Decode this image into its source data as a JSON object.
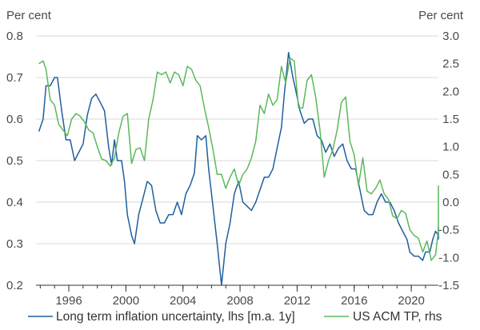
{
  "chart_data": {
    "type": "line",
    "left_axis": {
      "unit": "Per cent",
      "ylim": [
        0.2,
        0.8
      ],
      "ticks": [
        0.2,
        0.3,
        0.4,
        0.5,
        0.6,
        0.7,
        0.8
      ],
      "tick_labels": [
        "0.2",
        "0.3",
        "0.4",
        "0.5",
        "0.6",
        "0.7",
        "0.8"
      ]
    },
    "right_axis": {
      "unit": "Per cent",
      "ylim": [
        -1.5,
        3.0
      ],
      "ticks": [
        -1.5,
        -1.0,
        -0.5,
        0.0,
        0.5,
        1.0,
        1.5,
        2.0,
        2.5,
        3.0
      ],
      "tick_labels": [
        "-1.5",
        "-1.0",
        "-0.5",
        "0.0",
        "0.5",
        "1.0",
        "1.5",
        "2.0",
        "2.5",
        "3.0"
      ]
    },
    "x_axis": {
      "xlim": [
        1993.7,
        2021.9
      ],
      "ticks": [
        1996,
        2000,
        2004,
        2008,
        2012,
        2016,
        2020
      ],
      "tick_labels": [
        "1996",
        "2000",
        "2004",
        "2008",
        "2012",
        "2016",
        "2020"
      ]
    },
    "grid": "horizontal",
    "legend_position": "bottom",
    "series": [
      {
        "name": "Long term inflation uncertainty, lhs [m.a. 1y]",
        "axis": "left",
        "color": "#1f5f9e",
        "points": [
          [
            1993.9,
            0.57
          ],
          [
            1994.2,
            0.6
          ],
          [
            1994.4,
            0.68
          ],
          [
            1994.7,
            0.68
          ],
          [
            1995.0,
            0.7
          ],
          [
            1995.2,
            0.7
          ],
          [
            1995.5,
            0.62
          ],
          [
            1995.8,
            0.55
          ],
          [
            1996.1,
            0.55
          ],
          [
            1996.4,
            0.5
          ],
          [
            1996.7,
            0.52
          ],
          [
            1997.0,
            0.54
          ],
          [
            1997.3,
            0.61
          ],
          [
            1997.6,
            0.65
          ],
          [
            1997.9,
            0.66
          ],
          [
            1998.2,
            0.64
          ],
          [
            1998.5,
            0.62
          ],
          [
            1998.8,
            0.53
          ],
          [
            1999.0,
            0.49
          ],
          [
            1999.2,
            0.55
          ],
          [
            1999.4,
            0.5
          ],
          [
            1999.7,
            0.5
          ],
          [
            1999.9,
            0.45
          ],
          [
            2000.1,
            0.37
          ],
          [
            2000.4,
            0.32
          ],
          [
            2000.6,
            0.3
          ],
          [
            2000.9,
            0.37
          ],
          [
            2001.2,
            0.41
          ],
          [
            2001.5,
            0.45
          ],
          [
            2001.8,
            0.44
          ],
          [
            2002.1,
            0.38
          ],
          [
            2002.4,
            0.35
          ],
          [
            2002.7,
            0.35
          ],
          [
            2003.0,
            0.37
          ],
          [
            2003.3,
            0.37
          ],
          [
            2003.6,
            0.4
          ],
          [
            2003.9,
            0.37
          ],
          [
            2004.2,
            0.42
          ],
          [
            2004.5,
            0.44
          ],
          [
            2004.8,
            0.47
          ],
          [
            2005.0,
            0.56
          ],
          [
            2005.3,
            0.55
          ],
          [
            2005.6,
            0.56
          ],
          [
            2005.8,
            0.48
          ],
          [
            2006.1,
            0.39
          ],
          [
            2006.4,
            0.3
          ],
          [
            2006.7,
            0.2
          ],
          [
            2007.0,
            0.3
          ],
          [
            2007.3,
            0.35
          ],
          [
            2007.6,
            0.42
          ],
          [
            2007.9,
            0.45
          ],
          [
            2008.2,
            0.4
          ],
          [
            2008.5,
            0.39
          ],
          [
            2008.8,
            0.38
          ],
          [
            2009.1,
            0.4
          ],
          [
            2009.4,
            0.43
          ],
          [
            2009.7,
            0.46
          ],
          [
            2010.0,
            0.46
          ],
          [
            2010.3,
            0.48
          ],
          [
            2010.6,
            0.53
          ],
          [
            2010.9,
            0.58
          ],
          [
            2011.1,
            0.66
          ],
          [
            2011.4,
            0.76
          ],
          [
            2011.7,
            0.7
          ],
          [
            2011.9,
            0.67
          ],
          [
            2012.2,
            0.62
          ],
          [
            2012.5,
            0.59
          ],
          [
            2012.8,
            0.6
          ],
          [
            2013.1,
            0.6
          ],
          [
            2013.4,
            0.56
          ],
          [
            2013.7,
            0.55
          ],
          [
            2014.0,
            0.52
          ],
          [
            2014.3,
            0.54
          ],
          [
            2014.6,
            0.51
          ],
          [
            2014.9,
            0.53
          ],
          [
            2015.2,
            0.54
          ],
          [
            2015.5,
            0.5
          ],
          [
            2015.8,
            0.48
          ],
          [
            2016.1,
            0.48
          ],
          [
            2016.4,
            0.43
          ],
          [
            2016.7,
            0.38
          ],
          [
            2017.0,
            0.37
          ],
          [
            2017.3,
            0.37
          ],
          [
            2017.6,
            0.4
          ],
          [
            2017.9,
            0.42
          ],
          [
            2018.2,
            0.4
          ],
          [
            2018.5,
            0.4
          ],
          [
            2018.8,
            0.38
          ],
          [
            2019.1,
            0.35
          ],
          [
            2019.4,
            0.33
          ],
          [
            2019.7,
            0.31
          ],
          [
            2019.9,
            0.28
          ],
          [
            2020.2,
            0.27
          ],
          [
            2020.5,
            0.27
          ],
          [
            2020.8,
            0.26
          ],
          [
            2021.0,
            0.28
          ],
          [
            2021.3,
            0.28
          ],
          [
            2021.5,
            0.31
          ],
          [
            2021.7,
            0.33
          ],
          [
            2021.9,
            0.32
          ],
          [
            2022.1,
            0.34
          ],
          [
            2022.4,
            0.31
          ]
        ]
      },
      {
        "name": "US ACM TP, rhs",
        "axis": "right",
        "color": "#5cb85c",
        "points": [
          [
            1993.9,
            2.5
          ],
          [
            1994.2,
            2.55
          ],
          [
            1994.4,
            2.4
          ],
          [
            1994.7,
            1.85
          ],
          [
            1995.0,
            1.75
          ],
          [
            1995.3,
            1.4
          ],
          [
            1995.6,
            1.3
          ],
          [
            1995.9,
            1.2
          ],
          [
            1996.2,
            1.5
          ],
          [
            1996.5,
            1.6
          ],
          [
            1996.8,
            1.55
          ],
          [
            1997.1,
            1.45
          ],
          [
            1997.4,
            1.3
          ],
          [
            1997.7,
            1.25
          ],
          [
            1998.0,
            1.0
          ],
          [
            1998.3,
            0.78
          ],
          [
            1998.6,
            0.75
          ],
          [
            1998.9,
            0.65
          ],
          [
            1999.2,
            0.8
          ],
          [
            1999.5,
            1.25
          ],
          [
            1999.8,
            1.55
          ],
          [
            2000.1,
            1.6
          ],
          [
            2000.4,
            0.7
          ],
          [
            2000.7,
            0.95
          ],
          [
            2001.0,
            0.98
          ],
          [
            2001.3,
            0.75
          ],
          [
            2001.6,
            1.5
          ],
          [
            2001.9,
            1.85
          ],
          [
            2002.2,
            2.35
          ],
          [
            2002.5,
            2.3
          ],
          [
            2002.8,
            2.35
          ],
          [
            2003.1,
            2.15
          ],
          [
            2003.4,
            2.35
          ],
          [
            2003.7,
            2.3
          ],
          [
            2004.0,
            2.1
          ],
          [
            2004.3,
            2.45
          ],
          [
            2004.6,
            2.4
          ],
          [
            2004.9,
            2.2
          ],
          [
            2005.2,
            2.1
          ],
          [
            2005.5,
            1.7
          ],
          [
            2005.8,
            1.35
          ],
          [
            2006.1,
            0.95
          ],
          [
            2006.4,
            0.5
          ],
          [
            2006.7,
            0.5
          ],
          [
            2007.0,
            0.25
          ],
          [
            2007.3,
            0.45
          ],
          [
            2007.6,
            0.6
          ],
          [
            2007.9,
            0.3
          ],
          [
            2008.2,
            0.5
          ],
          [
            2008.5,
            0.6
          ],
          [
            2008.8,
            0.8
          ],
          [
            2009.1,
            1.1
          ],
          [
            2009.4,
            1.75
          ],
          [
            2009.7,
            1.6
          ],
          [
            2010.0,
            1.95
          ],
          [
            2010.3,
            1.75
          ],
          [
            2010.6,
            1.85
          ],
          [
            2010.9,
            2.45
          ],
          [
            2011.2,
            2.15
          ],
          [
            2011.5,
            2.6
          ],
          [
            2011.8,
            2.55
          ],
          [
            2012.1,
            1.7
          ],
          [
            2012.4,
            1.7
          ],
          [
            2012.7,
            2.2
          ],
          [
            2013.0,
            2.3
          ],
          [
            2013.3,
            1.9
          ],
          [
            2013.6,
            1.3
          ],
          [
            2013.9,
            0.45
          ],
          [
            2014.2,
            0.75
          ],
          [
            2014.5,
            0.95
          ],
          [
            2014.8,
            1.3
          ],
          [
            2015.1,
            1.8
          ],
          [
            2015.4,
            1.9
          ],
          [
            2015.7,
            1.1
          ],
          [
            2016.0,
            0.85
          ],
          [
            2016.3,
            0.3
          ],
          [
            2016.6,
            0.8
          ],
          [
            2016.9,
            0.2
          ],
          [
            2017.2,
            0.15
          ],
          [
            2017.5,
            0.25
          ],
          [
            2017.8,
            0.4
          ],
          [
            2018.1,
            0.15
          ],
          [
            2018.4,
            0.05
          ],
          [
            2018.7,
            -0.25
          ],
          [
            2019.0,
            -0.3
          ],
          [
            2019.3,
            -0.15
          ],
          [
            2019.6,
            -0.2
          ],
          [
            2019.9,
            -0.5
          ],
          [
            2020.2,
            -0.6
          ],
          [
            2020.5,
            -0.65
          ],
          [
            2020.8,
            -0.9
          ],
          [
            2021.1,
            -0.7
          ],
          [
            2021.4,
            -1.05
          ],
          [
            2021.7,
            -0.95
          ],
          [
            2022.0,
            -0.5
          ],
          [
            2022.3,
            0.3
          ]
        ]
      }
    ]
  }
}
